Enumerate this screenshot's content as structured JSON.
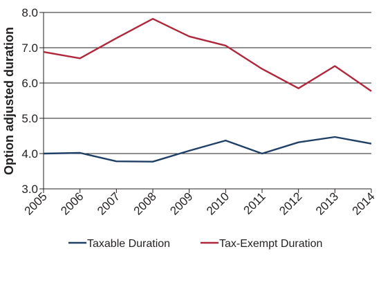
{
  "chart_data": {
    "type": "line",
    "title": "",
    "xlabel": "",
    "ylabel": "Option adjusted duration",
    "x": [
      "2005",
      "2006",
      "2007",
      "2008",
      "2009",
      "2010",
      "2011",
      "2012",
      "2013",
      "2014"
    ],
    "ylim": [
      3.0,
      8.0
    ],
    "yticks": [
      "3.0",
      "4.0",
      "5.0",
      "6.0",
      "7.0",
      "8.0"
    ],
    "grid": "horizontal",
    "legend_position": "bottom",
    "series": [
      {
        "name": "Taxable Duration",
        "color": "#1f3f66",
        "values": [
          4.0,
          4.02,
          3.78,
          3.77,
          4.08,
          4.37,
          4.0,
          4.32,
          4.47,
          4.28
        ]
      },
      {
        "name": "Tax-Exempt Duration",
        "color": "#b0263a",
        "values": [
          6.88,
          6.7,
          7.27,
          7.82,
          7.32,
          7.06,
          6.4,
          5.85,
          6.48,
          5.77
        ]
      }
    ]
  }
}
